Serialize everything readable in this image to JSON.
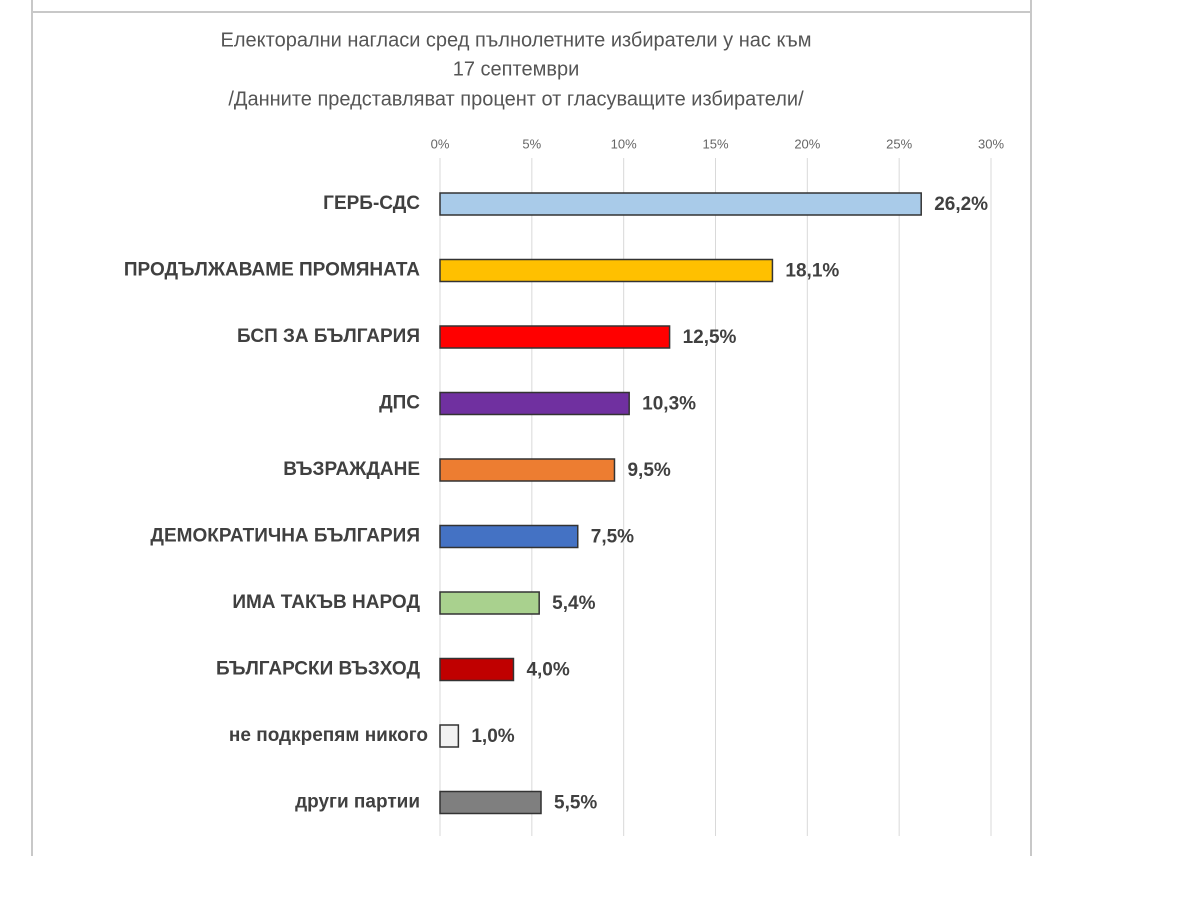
{
  "chart_data": {
    "type": "bar",
    "orientation": "horizontal",
    "title_lines": [
      "Електорални нагласи сред пълнолетните избиратели у нас към",
      "17 септември"
    ],
    "subtitle": "/Данните представляват процент от гласуващите избиратели/",
    "categories": [
      "ГЕРБ-СДС",
      "ПРОДЪЛЖАВАМЕ ПРОМЯНАТА",
      "БСП ЗА БЪЛГАРИЯ",
      "ДПС",
      "ВЪЗРАЖДАНЕ",
      "ДЕМОКРАТИЧНА БЪЛГАРИЯ",
      "ИМА ТАКЪВ НАРОД",
      "БЪЛГАРСКИ ВЪЗХОД",
      "не подкрепям никого",
      "други партии"
    ],
    "values": [
      26.2,
      18.1,
      12.5,
      10.3,
      9.5,
      7.5,
      5.4,
      4.0,
      1.0,
      5.5
    ],
    "value_labels": [
      "26,2%",
      "18,1%",
      "12,5%",
      "10,3%",
      "9,5%",
      "7,5%",
      "5,4%",
      "4,0%",
      "1,0%",
      "5,5%"
    ],
    "colors": [
      "#a9cbe9",
      "#ffc000",
      "#ff0000",
      "#7030a0",
      "#ed7d31",
      "#4472c4",
      "#a9d18e",
      "#c00000",
      "#f2f2f2",
      "#7f7f7f"
    ],
    "xlim": [
      0,
      30
    ],
    "xticks": [
      {
        "value": 0,
        "label": "0%"
      },
      {
        "value": 5,
        "label": "5%"
      },
      {
        "value": 10,
        "label": "10%"
      },
      {
        "value": 15,
        "label": "15%"
      },
      {
        "value": 20,
        "label": "20%"
      },
      {
        "value": 25,
        "label": "25%"
      },
      {
        "value": 30,
        "label": "30%"
      }
    ],
    "grid": true
  }
}
